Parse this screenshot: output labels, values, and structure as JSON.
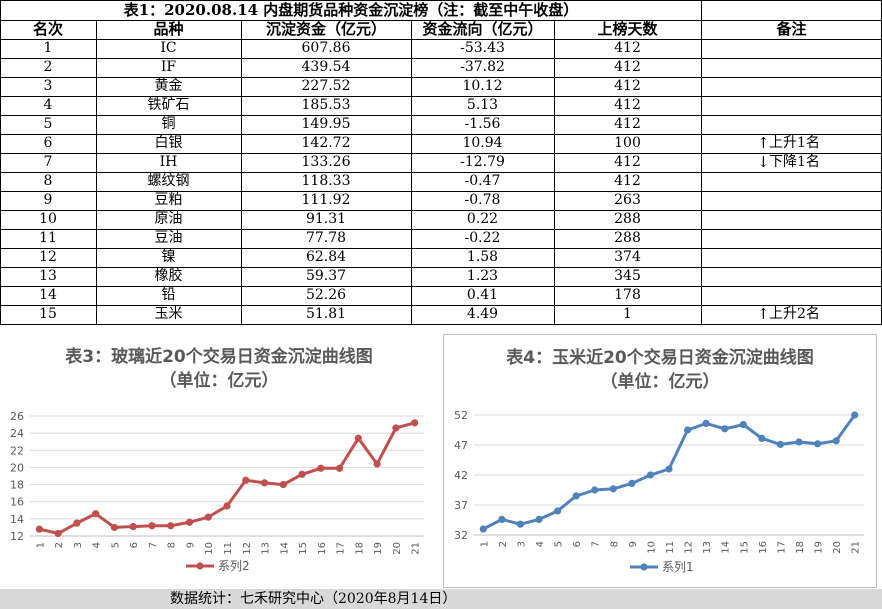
{
  "table": {
    "title": "表1：2020.08.14 内盘期货品种资金沉淀榜（注：截至中午收盘）",
    "headers": [
      "名次",
      "品种",
      "沉淀资金（亿元）",
      "资金流向（亿元）",
      "上榜天数",
      "备注"
    ],
    "rows": [
      {
        "rank": "1",
        "name": "IC",
        "fund": "607.86",
        "flow": "-53.43",
        "days": "412",
        "note": ""
      },
      {
        "rank": "2",
        "name": "IF",
        "fund": "439.54",
        "flow": "-37.82",
        "days": "412",
        "note": ""
      },
      {
        "rank": "3",
        "name": "黄金",
        "fund": "227.52",
        "flow": "10.12",
        "days": "412",
        "note": ""
      },
      {
        "rank": "4",
        "name": "铁矿石",
        "fund": "185.53",
        "flow": "5.13",
        "days": "412",
        "note": ""
      },
      {
        "rank": "5",
        "name": "铜",
        "fund": "149.95",
        "flow": "-1.56",
        "days": "412",
        "note": ""
      },
      {
        "rank": "6",
        "name": "白银",
        "fund": "142.72",
        "flow": "10.94",
        "days": "100",
        "note": "上升1名",
        "arrow": "↑"
      },
      {
        "rank": "7",
        "name": "IH",
        "fund": "133.26",
        "flow": "-12.79",
        "days": "412",
        "note": "下降1名",
        "arrow": "↓"
      },
      {
        "rank": "8",
        "name": "螺纹钢",
        "fund": "118.33",
        "flow": "-0.47",
        "days": "412",
        "note": ""
      },
      {
        "rank": "9",
        "name": "豆粕",
        "fund": "111.92",
        "flow": "-0.78",
        "days": "263",
        "note": ""
      },
      {
        "rank": "10",
        "name": "原油",
        "fund": "91.31",
        "flow": "0.22",
        "days": "288",
        "note": ""
      },
      {
        "rank": "11",
        "name": "豆油",
        "fund": "77.78",
        "flow": "-0.22",
        "days": "288",
        "note": ""
      },
      {
        "rank": "12",
        "name": "镍",
        "fund": "62.84",
        "flow": "1.58",
        "days": "374",
        "note": ""
      },
      {
        "rank": "13",
        "name": "橡胶",
        "fund": "59.37",
        "flow": "1.23",
        "days": "345",
        "note": ""
      },
      {
        "rank": "14",
        "name": "铅",
        "fund": "52.26",
        "flow": "0.41",
        "days": "178",
        "note": ""
      },
      {
        "rank": "15",
        "name": "玉米",
        "fund": "51.81",
        "flow": "4.49",
        "days": "1",
        "note": "上升2名",
        "arrow": "↑"
      }
    ]
  },
  "chart_data": [
    {
      "type": "line",
      "title": "表3：玻璃近20个交易日资金沉淀曲线图",
      "subtitle": "（单位：亿元）",
      "x": [
        "1",
        "2",
        "3",
        "4",
        "5",
        "6",
        "7",
        "8",
        "9",
        "10",
        "11",
        "12",
        "13",
        "14",
        "15",
        "16",
        "17",
        "18",
        "19",
        "20",
        "21"
      ],
      "series": [
        {
          "name": "系列2",
          "values": [
            12.8,
            12.3,
            13.5,
            14.6,
            13.0,
            13.1,
            13.2,
            13.2,
            13.6,
            14.2,
            15.5,
            18.5,
            18.2,
            18.0,
            19.2,
            19.9,
            19.9,
            23.4,
            20.4,
            24.6,
            25.2
          ]
        }
      ],
      "ylim": [
        12,
        26
      ],
      "yticks": [
        "12",
        "14",
        "16",
        "18",
        "20",
        "22",
        "24",
        "26"
      ],
      "color": "#c0504d",
      "grid": true,
      "legend": "bottom"
    },
    {
      "type": "line",
      "title": "表4：玉米近20个交易日资金沉淀曲线图",
      "subtitle": "（单位：亿元）",
      "x": [
        "1",
        "2",
        "3",
        "4",
        "5",
        "6",
        "7",
        "8",
        "9",
        "10",
        "11",
        "12",
        "13",
        "14",
        "15",
        "16",
        "17",
        "18",
        "19",
        "20",
        "21"
      ],
      "series": [
        {
          "name": "系列1",
          "values": [
            33.0,
            34.6,
            33.8,
            34.6,
            36.0,
            38.5,
            39.5,
            39.7,
            40.6,
            42.0,
            43.0,
            49.5,
            50.6,
            49.7,
            50.4,
            48.1,
            47.1,
            47.5,
            47.2,
            47.7,
            52.0
          ]
        }
      ],
      "ylim": [
        32,
        52
      ],
      "yticks": [
        "32",
        "37",
        "42",
        "47",
        "52"
      ],
      "color": "#4f81bd",
      "grid": true,
      "legend": "bottom"
    }
  ],
  "footer": "数据统计：七禾研究中心（2020年8月14日）"
}
